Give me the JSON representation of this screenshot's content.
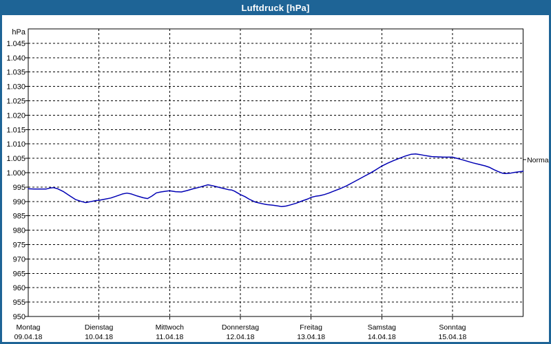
{
  "window": {
    "title": "Luftdruck [hPa]"
  },
  "colors": {
    "titlebar_bg": "#1e6496",
    "frame": "#1e6496",
    "title_text": "#ffffff",
    "plot_bg": "#ffffff",
    "grid": "#000000",
    "axis": "#000000",
    "line": "#0000b4",
    "label_text": "#000000"
  },
  "chart_data": {
    "type": "line",
    "title": "Luftdruck [hPa]",
    "y_unit_label": "hPa",
    "ylim": [
      950,
      1050
    ],
    "ytick_step": 5,
    "grid": "dashed horizontal lines every 5 hPa, dashed vertical lines at day boundaries",
    "legend_position": "none",
    "yticks": {
      "values": [
        1045,
        1040,
        1035,
        1030,
        1025,
        1020,
        1015,
        1010,
        1005,
        1000,
        995,
        990,
        985,
        980,
        975,
        970,
        965,
        960,
        955,
        950
      ],
      "labels": [
        "1.045",
        "1.040",
        "1.035",
        "1.030",
        "1.025",
        "1.020",
        "1.015",
        "1.010",
        "1.005",
        "1.000",
        "995",
        "990",
        "985",
        "980",
        "975",
        "970",
        "965",
        "960",
        "955",
        "950"
      ]
    },
    "x_days": [
      {
        "label": "Montag",
        "date": "09.04.18"
      },
      {
        "label": "Dienstag",
        "date": "10.04.18"
      },
      {
        "label": "Mittwoch",
        "date": "11.04.18"
      },
      {
        "label": "Donnerstag",
        "date": "12.04.18"
      },
      {
        "label": "Freitag",
        "date": "13.04.18"
      },
      {
        "label": "Samstag",
        "date": "14.04.18"
      },
      {
        "label": "Sonntag",
        "date": "15.04.18"
      }
    ],
    "normal_marker": {
      "label": "Normal",
      "value": 1004.5
    },
    "series": [
      {
        "name": "Luftdruck",
        "color": "#0000b4",
        "x_unit": "hours_from_monday_00:00",
        "points": [
          [
            0,
            994.4
          ],
          [
            2,
            994.3
          ],
          [
            4,
            994.3
          ],
          [
            6,
            994.3
          ],
          [
            7.5,
            994.7
          ],
          [
            8.5,
            994.8
          ],
          [
            10,
            994.4
          ],
          [
            12,
            993.4
          ],
          [
            14,
            992.0
          ],
          [
            16,
            990.7
          ],
          [
            18,
            990.0
          ],
          [
            19.5,
            989.6
          ],
          [
            21,
            989.9
          ],
          [
            23,
            990.3
          ],
          [
            24,
            990.4
          ],
          [
            26,
            990.8
          ],
          [
            28,
            991.2
          ],
          [
            30,
            991.9
          ],
          [
            32,
            992.6
          ],
          [
            33.5,
            992.9
          ],
          [
            35,
            992.6
          ],
          [
            37,
            991.9
          ],
          [
            39,
            991.3
          ],
          [
            40.5,
            991.0
          ],
          [
            42,
            991.9
          ],
          [
            43.5,
            993.0
          ],
          [
            45,
            993.3
          ],
          [
            47,
            993.6
          ],
          [
            48,
            993.7
          ],
          [
            50,
            993.4
          ],
          [
            52,
            993.3
          ],
          [
            54,
            993.8
          ],
          [
            56,
            994.4
          ],
          [
            58,
            994.9
          ],
          [
            60,
            995.5
          ],
          [
            61,
            995.8
          ],
          [
            62.5,
            995.5
          ],
          [
            64,
            995.1
          ],
          [
            66,
            994.6
          ],
          [
            68,
            994.1
          ],
          [
            69,
            994.0
          ],
          [
            70,
            993.6
          ],
          [
            71,
            993.0
          ],
          [
            72,
            992.4
          ],
          [
            73.5,
            991.7
          ],
          [
            75,
            990.8
          ],
          [
            77,
            989.8
          ],
          [
            79,
            989.3
          ],
          [
            81,
            988.9
          ],
          [
            83,
            988.7
          ],
          [
            85,
            988.4
          ],
          [
            86,
            988.2
          ],
          [
            87.5,
            988.4
          ],
          [
            89,
            988.8
          ],
          [
            91,
            989.4
          ],
          [
            93,
            990.2
          ],
          [
            95,
            990.9
          ],
          [
            96,
            991.4
          ],
          [
            97.5,
            991.8
          ],
          [
            99,
            992.0
          ],
          [
            100.5,
            992.4
          ],
          [
            102,
            992.9
          ],
          [
            104,
            993.7
          ],
          [
            106,
            994.5
          ],
          [
            108,
            995.4
          ],
          [
            110,
            996.5
          ],
          [
            112,
            997.6
          ],
          [
            114,
            998.7
          ],
          [
            116,
            999.8
          ],
          [
            118,
            1001.0
          ],
          [
            120,
            1002.3
          ],
          [
            122,
            1003.3
          ],
          [
            124,
            1004.2
          ],
          [
            126,
            1005.0
          ],
          [
            128,
            1005.8
          ],
          [
            130,
            1006.4
          ],
          [
            131.5,
            1006.5
          ],
          [
            133,
            1006.3
          ],
          [
            135,
            1005.9
          ],
          [
            137,
            1005.6
          ],
          [
            139,
            1005.5
          ],
          [
            141,
            1005.4
          ],
          [
            143,
            1005.4
          ],
          [
            144,
            1005.4
          ],
          [
            145.5,
            1005.0
          ],
          [
            147,
            1004.6
          ],
          [
            149,
            1004.0
          ],
          [
            151,
            1003.4
          ],
          [
            153,
            1002.9
          ],
          [
            155,
            1002.4
          ],
          [
            156.5,
            1001.9
          ],
          [
            158,
            1001.1
          ],
          [
            159.5,
            1000.4
          ],
          [
            161,
            999.8
          ],
          [
            162,
            999.7
          ],
          [
            163.5,
            999.8
          ],
          [
            165,
            1000.1
          ],
          [
            166.5,
            1000.3
          ],
          [
            168,
            1000.5
          ]
        ]
      }
    ]
  }
}
